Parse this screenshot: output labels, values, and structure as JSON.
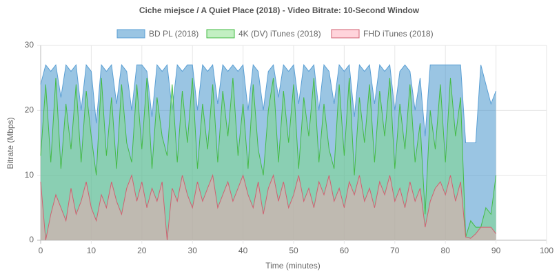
{
  "chart_data": {
    "type": "area",
    "title": "Ciche miejsce / A Quiet Place (2018) - Video Bitrate: 10-Second Window",
    "x_label": "Time (minutes)",
    "y_label": "Bitrate (Mbps)",
    "x": [
      0,
      1,
      2,
      3,
      4,
      5,
      6,
      7,
      8,
      9,
      10,
      11,
      12,
      13,
      14,
      15,
      16,
      17,
      18,
      19,
      20,
      21,
      22,
      23,
      24,
      25,
      26,
      27,
      28,
      29,
      30,
      31,
      32,
      33,
      34,
      35,
      36,
      37,
      38,
      39,
      40,
      41,
      42,
      43,
      44,
      45,
      46,
      47,
      48,
      49,
      50,
      51,
      52,
      53,
      54,
      55,
      56,
      57,
      58,
      59,
      60,
      61,
      62,
      63,
      64,
      65,
      66,
      67,
      68,
      69,
      70,
      71,
      72,
      73,
      74,
      75,
      76,
      77,
      78,
      79,
      80,
      81,
      82,
      83,
      84,
      85,
      86,
      87,
      88,
      89,
      90
    ],
    "series": [
      {
        "name": "BD PL (2018)",
        "color": "#5a9fd4",
        "fill": "rgba(54,140,200,0.5)",
        "values": [
          24,
          27,
          26,
          27,
          22,
          27,
          26,
          27,
          20,
          27,
          26,
          18,
          27,
          26,
          27,
          21,
          27,
          26,
          20,
          27,
          27,
          26,
          19,
          27,
          26,
          27,
          20,
          27,
          26,
          27,
          27,
          20,
          27,
          26,
          27,
          21,
          27,
          26,
          27,
          26,
          27,
          20,
          27,
          26,
          20,
          26,
          27,
          22,
          27,
          26,
          27,
          21,
          27,
          26,
          27,
          20,
          27,
          26,
          21,
          27,
          26,
          27,
          19,
          27,
          26,
          27,
          21,
          27,
          26,
          27,
          20,
          26,
          27,
          26,
          20,
          25,
          16,
          27,
          27,
          27,
          27,
          27,
          27,
          27,
          15,
          15,
          15,
          27,
          24,
          21,
          23
        ]
      },
      {
        "name": "4K (DV) iTunes (2018)",
        "color": "#44bb44",
        "fill": "rgba(120,220,120,0.45)",
        "values": [
          13,
          24,
          12,
          25,
          11,
          21,
          14,
          24,
          12,
          23,
          16,
          10,
          25,
          13,
          22,
          11,
          24,
          15,
          12,
          24,
          14,
          25,
          11,
          22,
          16,
          13,
          24,
          12,
          23,
          15,
          25,
          11,
          21,
          14,
          24,
          12,
          23,
          16,
          25,
          13,
          21,
          11,
          24,
          14,
          10,
          20,
          25,
          12,
          23,
          15,
          24,
          11,
          22,
          16,
          25,
          12,
          21,
          14,
          11,
          24,
          13,
          25,
          10,
          22,
          15,
          24,
          12,
          23,
          16,
          25,
          11,
          21,
          14,
          24,
          12,
          18,
          4,
          20,
          14,
          24,
          12,
          25,
          16,
          22,
          0.5,
          3,
          2,
          2,
          5,
          4,
          10
        ]
      },
      {
        "name": "FHD iTunes (2018)",
        "color": "#d06070",
        "fill": "rgba(255,160,175,0.45)",
        "values": [
          9,
          0,
          4,
          7,
          5,
          3,
          8,
          4,
          6,
          9,
          5,
          3,
          7,
          5,
          9,
          6,
          4,
          8,
          10,
          6,
          9,
          5,
          8,
          6,
          9,
          0,
          8,
          6,
          10,
          7,
          5,
          9,
          6,
          8,
          10,
          5,
          7,
          9,
          6,
          8,
          10,
          7,
          5,
          9,
          4,
          8,
          10,
          6,
          9,
          5,
          7,
          10,
          6,
          8,
          5,
          9,
          7,
          10,
          6,
          8,
          5,
          9,
          7,
          10,
          6,
          8,
          5,
          9,
          7,
          10,
          6,
          8,
          5,
          9,
          6,
          8,
          2,
          6,
          8,
          9,
          7,
          10,
          6,
          9,
          0.5,
          0.3,
          1,
          2,
          2,
          2,
          1
        ]
      }
    ],
    "xlim": [
      0,
      100
    ],
    "xticks": [
      0,
      10,
      20,
      30,
      40,
      50,
      60,
      70,
      80,
      90,
      100
    ],
    "ylim": [
      0,
      30
    ],
    "yticks": [
      0,
      10,
      20,
      30
    ],
    "grid": true,
    "legend": "top"
  }
}
